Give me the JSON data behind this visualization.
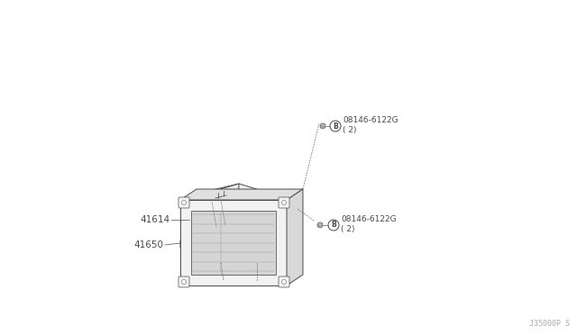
{
  "bg_color": "#ffffff",
  "watermark": "J35000P S",
  "part1_label": "41614",
  "part2_label": "41650",
  "bolt_label1": "08146-6122G\n( 2)",
  "bolt_label2": "08146-6122G\n( 2)",
  "bolt_symbol": "B",
  "figsize": [
    6.4,
    3.72
  ],
  "dpi": 100,
  "line_color": "#4a4a4a",
  "line_color_light": "#888888"
}
